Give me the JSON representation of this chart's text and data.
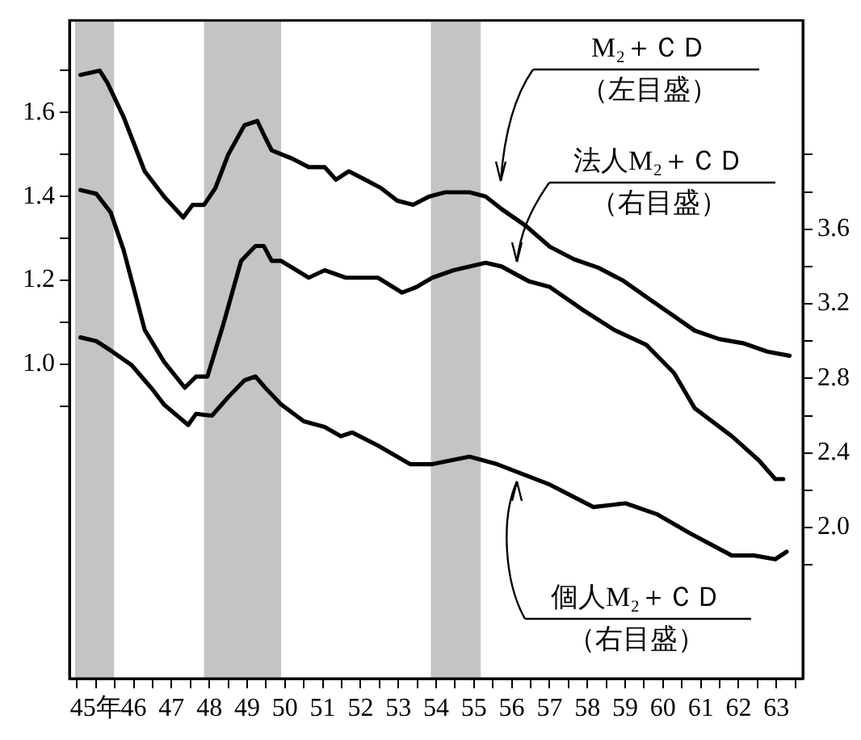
{
  "chart_data": {
    "type": "line",
    "annotations": [
      "M₂＋ＣＤ（左目盛）",
      "法人M₂＋ＣＤ（右目盛）",
      "個人M₂＋ＣＤ（右目盛）"
    ],
    "series": [
      {
        "color": "#000000",
        "axis": "y",
        "x": [
          45.09,
          45.6,
          45.81,
          46.23,
          46.79,
          47.3,
          47.81,
          48.06,
          48.36,
          48.66,
          49.0,
          49.43,
          49.77,
          49.98,
          50.15,
          50.7,
          51.13,
          51.55,
          51.85,
          52.19,
          52.62,
          53.04,
          53.47,
          53.89,
          54.32,
          54.74,
          55.38,
          55.81,
          56.23,
          56.87,
          57.51,
          58.15,
          58.79,
          59.43,
          60.06,
          60.7,
          61.34,
          61.98,
          62.62,
          63.26,
          63.85
        ],
        "values": [
          1.69,
          1.7,
          1.67,
          1.59,
          1.46,
          1.4,
          1.35,
          1.38,
          1.38,
          1.42,
          1.5,
          1.57,
          1.58,
          1.54,
          1.51,
          1.49,
          1.47,
          1.47,
          1.44,
          1.46,
          1.44,
          1.42,
          1.39,
          1.38,
          1.4,
          1.41,
          1.41,
          1.4,
          1.37,
          1.33,
          1.28,
          1.25,
          1.23,
          1.2,
          1.16,
          1.12,
          1.08,
          1.06,
          1.05,
          1.03,
          1.02
        ]
      },
      {
        "color": "#000000",
        "axis": "y2",
        "x": [
          45.09,
          45.51,
          45.89,
          46.23,
          46.57,
          46.79,
          47.3,
          47.85,
          48.15,
          48.45,
          48.87,
          49.34,
          49.72,
          49.94,
          50.15,
          50.4,
          51.13,
          51.55,
          52.11,
          52.96,
          53.6,
          53.98,
          54.4,
          54.96,
          55.81,
          56.23,
          56.96,
          57.51,
          58.36,
          59.21,
          60.06,
          60.79,
          61.34,
          62.32,
          63.04,
          63.47,
          63.68
        ],
        "values": [
          3.81,
          3.79,
          3.69,
          3.49,
          3.23,
          3.06,
          2.89,
          2.75,
          2.81,
          2.81,
          3.09,
          3.43,
          3.51,
          3.51,
          3.43,
          3.43,
          3.34,
          3.38,
          3.34,
          3.34,
          3.26,
          3.29,
          3.34,
          3.38,
          3.42,
          3.4,
          3.32,
          3.29,
          3.17,
          3.06,
          2.98,
          2.83,
          2.64,
          2.49,
          2.36,
          2.26,
          2.26
        ]
      },
      {
        "color": "#000000",
        "axis": "y2",
        "x": [
          45.09,
          45.51,
          45.89,
          46.45,
          47.0,
          47.3,
          47.94,
          48.15,
          48.57,
          49.0,
          49.43,
          49.72,
          49.98,
          50.4,
          51.0,
          51.55,
          51.98,
          52.28,
          52.96,
          53.81,
          54.4,
          55.38,
          56.11,
          57.51,
          58.66,
          59.51,
          60.36,
          61.21,
          62.32,
          62.91,
          63.47,
          63.77
        ],
        "values": [
          3.02,
          3.0,
          2.95,
          2.87,
          2.74,
          2.66,
          2.55,
          2.61,
          2.6,
          2.7,
          2.79,
          2.81,
          2.75,
          2.66,
          2.57,
          2.54,
          2.49,
          2.51,
          2.44,
          2.34,
          2.34,
          2.38,
          2.34,
          2.23,
          2.11,
          2.13,
          2.07,
          1.97,
          1.85,
          1.85,
          1.83,
          1.87
        ]
      }
    ],
    "xlim": [
      44.8,
      64.2
    ],
    "xticks": [
      {
        "value": 45,
        "label": null
      },
      {
        "value": 45.5,
        "label": "45年"
      },
      {
        "value": 46,
        "label": null
      },
      {
        "value": 46.5,
        "label": "46"
      },
      {
        "value": 47,
        "label": null
      },
      {
        "value": 47.5,
        "label": "47"
      },
      {
        "value": 48,
        "label": null
      },
      {
        "value": 48.5,
        "label": "48"
      },
      {
        "value": 49,
        "label": null
      },
      {
        "value": 49.5,
        "label": "49"
      },
      {
        "value": 50,
        "label": null
      },
      {
        "value": 50.5,
        "label": "50"
      },
      {
        "value": 51,
        "label": null
      },
      {
        "value": 51.5,
        "label": "51"
      },
      {
        "value": 52,
        "label": null
      },
      {
        "value": 52.5,
        "label": "52"
      },
      {
        "value": 53,
        "label": null
      },
      {
        "value": 53.5,
        "label": "53"
      },
      {
        "value": 54,
        "label": null
      },
      {
        "value": 54.5,
        "label": "54"
      },
      {
        "value": 55,
        "label": null
      },
      {
        "value": 55.5,
        "label": "55"
      },
      {
        "value": 56,
        "label": null
      },
      {
        "value": 56.5,
        "label": "56"
      },
      {
        "value": 57,
        "label": null
      },
      {
        "value": 57.5,
        "label": "57"
      },
      {
        "value": 58,
        "label": null
      },
      {
        "value": 58.5,
        "label": "58"
      },
      {
        "value": 59,
        "label": null
      },
      {
        "value": 59.5,
        "label": "59"
      },
      {
        "value": 60,
        "label": null
      },
      {
        "value": 60.5,
        "label": "60"
      },
      {
        "value": 61,
        "label": null
      },
      {
        "value": 61.5,
        "label": "61"
      },
      {
        "value": 62,
        "label": null
      },
      {
        "value": 62.5,
        "label": "62"
      },
      {
        "value": 63,
        "label": null
      },
      {
        "value": 63.5,
        "label": "63"
      },
      {
        "value": 64,
        "label": null
      }
    ],
    "ylim": [
      0.25,
      1.82
    ],
    "yticks": [
      {
        "value": 0.9,
        "label": null
      },
      {
        "value": 1.0,
        "label": "1.0"
      },
      {
        "value": 1.1,
        "label": null
      },
      1.2,
      {
        "value": 1.3,
        "label": null
      },
      1.4,
      {
        "value": 1.5,
        "label": null
      },
      1.6,
      {
        "value": 1.7,
        "label": null
      }
    ],
    "y2lim": [
      1.19,
      4.72
    ],
    "y2ticks": [
      {
        "value": 1.8,
        "label": null
      },
      {
        "value": 2.0,
        "label": "2.0"
      },
      {
        "value": 2.2,
        "label": null
      },
      2.4,
      {
        "value": 2.6,
        "label": null
      },
      2.8,
      {
        "value": 3.0,
        "label": null
      },
      3.2,
      {
        "value": 3.4,
        "label": null
      },
      3.6,
      {
        "value": 3.8,
        "label": null
      },
      {
        "value": 4.0,
        "label": null
      }
    ],
    "bands": [
      {
        "axis": "x",
        "from": 44.95,
        "to": 45.98,
        "color": "#c4c4c4"
      },
      {
        "axis": "x",
        "from": 48.36,
        "to": 50.4,
        "color": "#c4c4c4"
      },
      {
        "axis": "x",
        "from": 54.36,
        "to": 55.68,
        "color": "#c4c4c4"
      }
    ],
    "grid": false,
    "legend": false,
    "marker": "none",
    "line_style": "solid"
  }
}
